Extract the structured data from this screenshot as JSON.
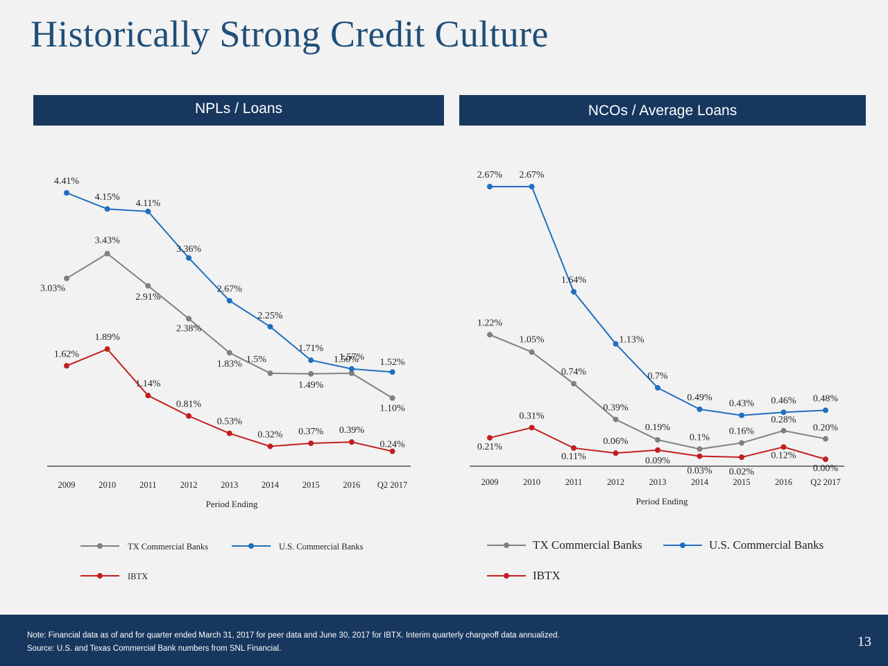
{
  "title": "Historically Strong Credit Culture",
  "panels": [
    {
      "header": "NPLs / Loans"
    },
    {
      "header": "NCOs / Average Loans"
    }
  ],
  "colors": {
    "tx": "#808080",
    "us": "#1f6fbf",
    "ibtx": "#c0201f",
    "header_bg": "#17375e",
    "title": "#1f4e79"
  },
  "chart_data": [
    {
      "type": "line",
      "title": "NPLs / Loans",
      "xlabel": "Period Ending",
      "ylabel": "",
      "categories": [
        "2009",
        "2010",
        "2011",
        "2012",
        "2013",
        "2014",
        "2015",
        "2016",
        "Q2 2017"
      ],
      "ylim": [
        0,
        4.6
      ],
      "grid": false,
      "legend_position": "bottom",
      "series": [
        {
          "name": "TX Commercial Banks",
          "key": "tx",
          "values": [
            3.03,
            3.43,
            2.91,
            2.38,
            1.83,
            1.5,
            1.49,
            1.5,
            1.1
          ],
          "labels": [
            "3.03%",
            "3.43%",
            "2.91%",
            "2.38%",
            "1.83%",
            "1.5%",
            "1.49%",
            "1.50%",
            "1.10%"
          ]
        },
        {
          "name": "U.S. Commercial Banks",
          "key": "us",
          "values": [
            4.41,
            4.15,
            4.11,
            3.36,
            2.67,
            2.25,
            1.71,
            1.57,
            1.52
          ],
          "labels": [
            "4.41%",
            "4.15%",
            "4.11%",
            "3.36%",
            "2.67%",
            "2.25%",
            "1.71%",
            "1.57%",
            "1.52%"
          ]
        },
        {
          "name": "IBTX",
          "key": "ibtx",
          "values": [
            1.62,
            1.89,
            1.14,
            0.81,
            0.53,
            0.32,
            0.37,
            0.39,
            0.24
          ],
          "labels": [
            "1.62%",
            "1.89%",
            "1.14%",
            "0.81%",
            "0.53%",
            "0.32%",
            "0.37%",
            "0.39%",
            "0.24%"
          ]
        }
      ]
    },
    {
      "type": "line",
      "title": "NCOs / Average Loans",
      "xlabel": "Period Ending",
      "ylabel": "",
      "categories": [
        "2009",
        "2010",
        "2011",
        "2012",
        "2013",
        "2014",
        "2015",
        "2016",
        "Q2 2017"
      ],
      "ylim": [
        0,
        2.8
      ],
      "grid": false,
      "legend_position": "bottom",
      "series": [
        {
          "name": "TX Commercial Banks",
          "key": "tx",
          "values": [
            1.22,
            1.05,
            0.74,
            0.39,
            0.19,
            0.1,
            0.16,
            0.28,
            0.2
          ],
          "labels": [
            "1.22%",
            "1.05%",
            "0.74%",
            "0.39%",
            "0.19%",
            "0.1%",
            "0.16%",
            "0.28%",
            "0.20%"
          ]
        },
        {
          "name": "U.S. Commercial Banks",
          "key": "us",
          "values": [
            2.67,
            2.67,
            1.64,
            1.13,
            0.7,
            0.49,
            0.43,
            0.46,
            0.48
          ],
          "labels": [
            "2.67%",
            "2.67%",
            "1.64%",
            "1.13%",
            "0.7%",
            "0.49%",
            "0.43%",
            "0.46%",
            "0.48%"
          ]
        },
        {
          "name": "IBTX",
          "key": "ibtx",
          "values": [
            0.21,
            0.31,
            0.11,
            0.06,
            0.09,
            0.03,
            0.02,
            0.12,
            0.0
          ],
          "labels": [
            "0.21%",
            "0.31%",
            "0.11%",
            "0.06%",
            "0.09%",
            "0.03%",
            "0.02%",
            "0.12%",
            "0.00%"
          ]
        }
      ]
    }
  ],
  "footer": {
    "note": "Note: Financial data as of and for quarter ended March 31, 2017 for peer data and June 30,  2017 for IBTX.  Interim quarterly chargeoff data annualized.",
    "source": "Source: U.S. and Texas Commercial Bank numbers from SNL Financial.",
    "page_number": "13"
  }
}
